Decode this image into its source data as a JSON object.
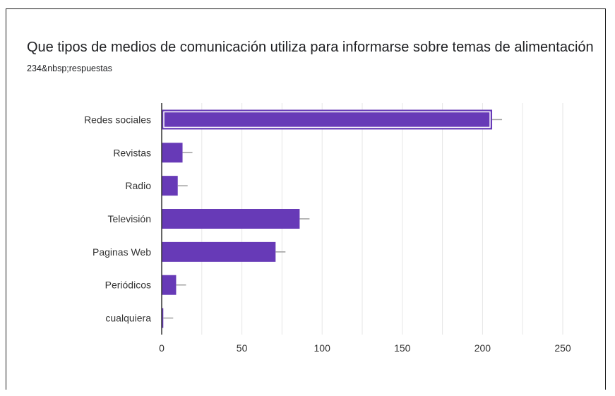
{
  "title": "Que tipos de medios de comunicación utiliza para informarse sobre temas de alimentación",
  "subtitle": "234&nbsp;respuestas",
  "chart_data": {
    "type": "bar",
    "orientation": "horizontal",
    "categories": [
      "Redes sociales",
      "Revistas",
      "Radio",
      "Televisión",
      "Paginas Web",
      "Periódicos",
      "cualquiera"
    ],
    "values": [
      206,
      13,
      10,
      86,
      71,
      9,
      1
    ],
    "xlim": [
      0,
      250
    ],
    "xticks": [
      0,
      50,
      100,
      150,
      200,
      250
    ],
    "grid": true,
    "colors": {
      "bar": "#673ab7",
      "grid": "#e6e6e6",
      "axis": "#333333",
      "whisker": "#9e9e9e"
    }
  }
}
